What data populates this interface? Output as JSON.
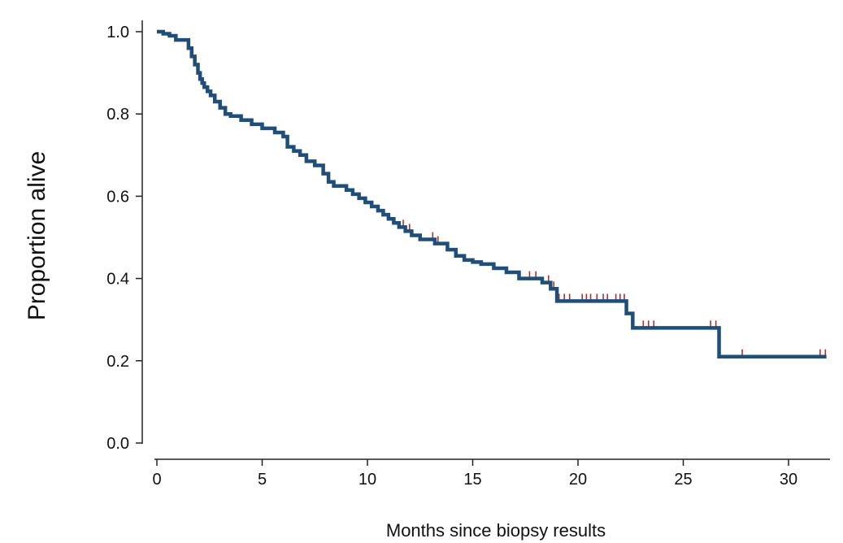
{
  "chart_data": {
    "type": "line",
    "title": "",
    "xlabel": "Months since biopsy results",
    "ylabel": "Proportion alive",
    "xlim": [
      0,
      32
    ],
    "ylim": [
      0,
      1.0
    ],
    "x_ticks": [
      0,
      5,
      10,
      15,
      20,
      25,
      30
    ],
    "x_tick_labels": [
      "0",
      "5",
      "10",
      "15",
      "20",
      "25",
      "30"
    ],
    "y_ticks": [
      0,
      0.2,
      0.4,
      0.6,
      0.8,
      1.0
    ],
    "y_tick_labels": [
      "0.0",
      "0.2",
      "0.4",
      "0.6",
      "0.8",
      "1.0"
    ],
    "grid": false,
    "line_color": "#1f4e79",
    "censor_color": "#b03030",
    "series": [
      {
        "step_x": [
          0,
          0.3,
          0.6,
          0.9,
          1.5,
          1.65,
          1.8,
          1.95,
          2.05,
          2.15,
          2.25,
          2.4,
          2.55,
          2.75,
          3.0,
          3.25,
          3.5,
          4.0,
          4.5,
          5.0,
          5.6,
          6.0,
          6.2,
          6.5,
          6.8,
          7.1,
          7.5,
          7.9,
          8.15,
          8.4,
          9.0,
          9.3,
          9.6,
          9.9,
          10.2,
          10.5,
          10.75,
          11.0,
          11.25,
          11.5,
          11.8,
          12.1,
          12.5,
          13.2,
          13.8,
          14.2,
          14.6,
          15.0,
          15.4,
          16.0,
          16.6,
          17.2,
          18.3,
          18.7,
          19.0,
          22.3,
          22.6,
          26.7
        ],
        "step_y": [
          1.0,
          0.995,
          0.99,
          0.98,
          0.96,
          0.94,
          0.92,
          0.9,
          0.885,
          0.875,
          0.865,
          0.855,
          0.845,
          0.83,
          0.815,
          0.8,
          0.795,
          0.785,
          0.775,
          0.765,
          0.755,
          0.745,
          0.72,
          0.71,
          0.7,
          0.685,
          0.675,
          0.655,
          0.635,
          0.625,
          0.615,
          0.605,
          0.595,
          0.585,
          0.575,
          0.565,
          0.555,
          0.545,
          0.535,
          0.525,
          0.515,
          0.505,
          0.495,
          0.485,
          0.47,
          0.455,
          0.445,
          0.44,
          0.435,
          0.425,
          0.415,
          0.4,
          0.39,
          0.375,
          0.345,
          0.315,
          0.28,
          0.21
        ],
        "end_x": 31.8,
        "censor_times": [
          11.7,
          12.0,
          13.1,
          13.35,
          17.7,
          18.0,
          18.6,
          18.85,
          19.1,
          19.35,
          19.6,
          20.2,
          20.4,
          20.6,
          20.9,
          21.2,
          21.4,
          21.8,
          22.0,
          22.2,
          23.1,
          23.35,
          23.6,
          26.3,
          26.55,
          27.8,
          31.5,
          31.75
        ]
      }
    ]
  }
}
